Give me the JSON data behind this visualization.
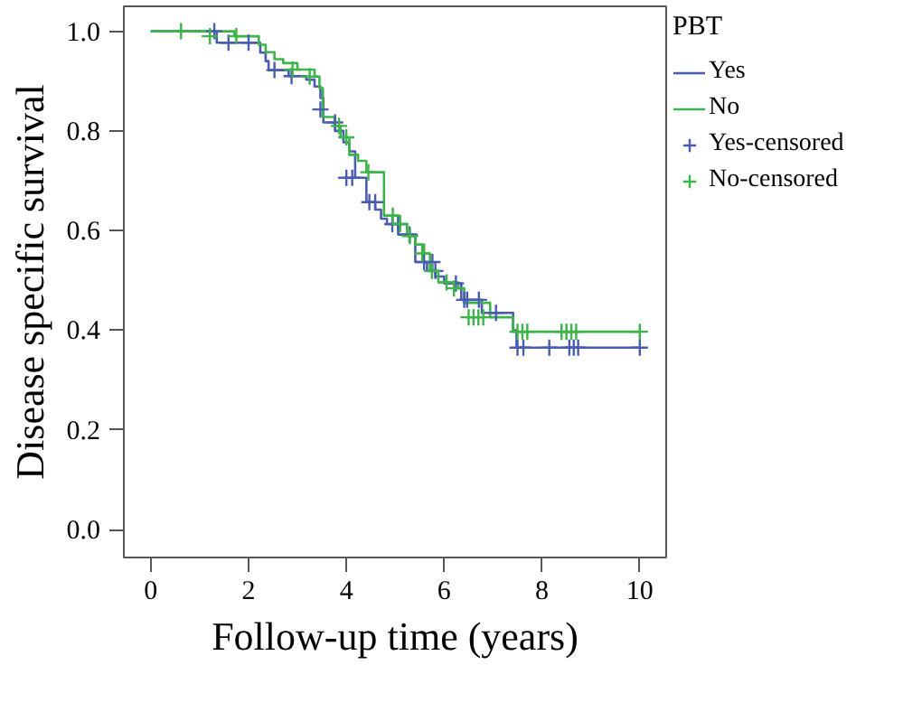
{
  "chart_data": {
    "type": "step",
    "xlabel": "Follow-up time (years)",
    "ylabel": "Disease specific survival",
    "legend_title": "PBT",
    "xlim": [
      -0.55,
      10.54
    ],
    "ylim": [
      -0.056,
      1.05
    ],
    "xticks": [
      0,
      2,
      4,
      6,
      8,
      10
    ],
    "yticks": [
      {
        "value": 0,
        "label": "0.0"
      },
      {
        "value": 0.2,
        "label": "0.2"
      },
      {
        "value": 0.4,
        "label": "0.4"
      },
      {
        "value": 0.6,
        "label": "0.6"
      },
      {
        "value": 0.8,
        "label": "0.8"
      },
      {
        "value": 1,
        "label": "1.0"
      }
    ],
    "grid": false,
    "legend": "right",
    "series": [
      {
        "name": "Yes",
        "color": "#4a5cb0",
        "x": [
          0,
          1.35,
          2.24,
          2.35,
          2.41,
          2.82,
          3.18,
          3.35,
          3.47,
          3.53,
          3.77,
          3.94,
          4.06,
          4.18,
          4.41,
          4.59,
          4.71,
          4.83,
          5.06,
          5.41,
          5.65,
          5.82,
          6.0,
          6.35,
          6.77,
          7.41,
          7.48,
          10.0
        ],
        "values": [
          1.0,
          0.977,
          0.957,
          0.94,
          0.922,
          0.91,
          0.903,
          0.889,
          0.866,
          0.817,
          0.8,
          0.777,
          0.759,
          0.706,
          0.657,
          0.642,
          0.624,
          0.613,
          0.592,
          0.537,
          0.519,
          0.508,
          0.494,
          0.461,
          0.435,
          0.4,
          0.365,
          0.365
        ]
      },
      {
        "name": "No",
        "color": "#3cb44a",
        "x": [
          0,
          1.71,
          2.21,
          2.35,
          2.53,
          2.71,
          3.0,
          3.35,
          3.45,
          3.52,
          3.76,
          3.88,
          4.06,
          4.24,
          4.41,
          4.77,
          5.06,
          5.24,
          5.41,
          5.59,
          5.71,
          5.88,
          6.29,
          6.41,
          6.94,
          7.41,
          10.0
        ],
        "values": [
          1.0,
          0.99,
          0.973,
          0.958,
          0.944,
          0.936,
          0.923,
          0.909,
          0.886,
          0.828,
          0.81,
          0.787,
          0.752,
          0.74,
          0.717,
          0.63,
          0.613,
          0.589,
          0.572,
          0.554,
          0.519,
          0.496,
          0.484,
          0.455,
          0.426,
          0.397,
          0.397
        ]
      },
      {
        "name": "Yes-censored",
        "type": "scatter",
        "marker": "cross",
        "color": "#4a5cb0",
        "x": [
          1.3,
          1.59,
          2.0,
          2.53,
          2.88,
          3.47,
          3.77,
          4.0,
          4.12,
          4.47,
          4.59,
          4.94,
          5.06,
          5.29,
          5.59,
          5.76,
          5.82,
          6.24,
          6.41,
          6.47,
          6.71,
          7.06,
          7.5,
          7.62,
          8.15,
          8.56,
          8.65,
          8.74,
          10.0
        ],
        "values": [
          1.0,
          0.977,
          0.977,
          0.922,
          0.91,
          0.843,
          0.817,
          0.706,
          0.706,
          0.657,
          0.657,
          0.613,
          0.613,
          0.592,
          0.537,
          0.537,
          0.519,
          0.494,
          0.461,
          0.461,
          0.461,
          0.435,
          0.365,
          0.365,
          0.365,
          0.365,
          0.365,
          0.365,
          0.365
        ]
      },
      {
        "name": "No-censored",
        "type": "scatter",
        "marker": "cross",
        "color": "#3cb44a",
        "x": [
          0.62,
          1.21,
          1.75,
          2.9,
          3.25,
          3.85,
          4.0,
          4.45,
          4.95,
          5.1,
          5.3,
          5.55,
          5.75,
          6.05,
          6.2,
          6.5,
          6.6,
          6.7,
          6.8,
          7.5,
          7.6,
          7.7,
          8.4,
          8.5,
          8.6,
          8.7,
          10.0
        ],
        "values": [
          1.0,
          0.99,
          0.99,
          0.923,
          0.909,
          0.81,
          0.787,
          0.717,
          0.63,
          0.613,
          0.589,
          0.554,
          0.519,
          0.496,
          0.484,
          0.426,
          0.426,
          0.426,
          0.426,
          0.397,
          0.397,
          0.397,
          0.397,
          0.397,
          0.397,
          0.397,
          0.397
        ]
      }
    ]
  }
}
